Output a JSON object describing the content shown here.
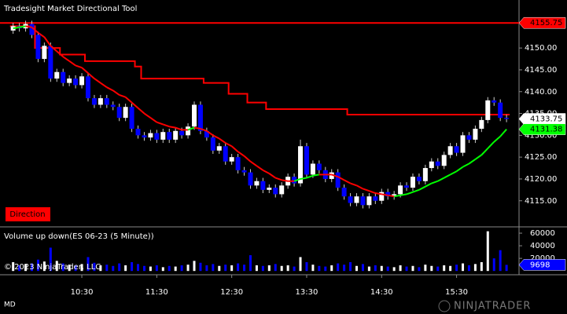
{
  "chart_data": [
    {
      "type": "candlestick",
      "title": "Tradesight Market Directional Tool",
      "direction_label": "Direction",
      "copyright": "© 2023 NinjaTrader, LLC",
      "instrument_note": "MD",
      "brand": "NINJATRADER",
      "x": [
        575,
        580,
        585,
        590,
        595,
        600,
        605,
        610,
        615,
        620,
        625,
        630,
        635,
        640,
        645,
        650,
        655,
        660,
        665,
        670,
        675,
        680,
        685,
        690,
        695,
        700,
        705,
        710,
        715,
        720,
        725,
        730,
        735,
        740,
        745,
        750,
        755,
        760,
        765,
        770,
        775,
        780,
        785,
        790,
        795,
        800,
        805,
        810,
        815,
        820,
        825,
        830,
        835,
        840,
        845,
        850,
        855,
        860,
        865,
        870,
        875,
        880,
        885,
        890,
        895,
        900,
        905,
        910,
        915,
        920,
        925,
        930,
        935,
        940,
        945,
        950,
        955,
        960,
        965,
        970
      ],
      "xlim": [
        564.5,
        980
      ],
      "xticks": [
        {
          "value": 630,
          "label": "10:30"
        },
        {
          "value": 690,
          "label": "11:30"
        },
        {
          "value": 750,
          "label": "12:30"
        },
        {
          "value": 810,
          "label": "13:30"
        },
        {
          "value": 870,
          "label": "14:30"
        },
        {
          "value": 930,
          "label": "15:30"
        }
      ],
      "open": [
        4154,
        4155,
        4154.5,
        4155.5,
        4153,
        4147.5,
        4150.5,
        4143,
        4144.5,
        4142,
        4143,
        4141.5,
        4143.5,
        4138.5,
        4137,
        4138.5,
        4137,
        4136.5,
        4134,
        4136.5,
        4131.5,
        4130,
        4129.5,
        4130.5,
        4129,
        4130.75,
        4129,
        4131,
        4130,
        4132,
        4137,
        4131,
        4129.5,
        4126.5,
        4127.5,
        4124,
        4125,
        4122,
        4121.5,
        4118.5,
        4119.5,
        4117.5,
        4118,
        4116.5,
        4118.5,
        4120.5,
        4119,
        4127.5,
        4121,
        4123.5,
        4122,
        4120,
        4121.5,
        4118,
        4116,
        4114.5,
        4116,
        4114,
        4116,
        4115,
        4117,
        4116,
        4116.5,
        4118.5,
        4118,
        4120.5,
        4119.5,
        4122.5,
        4124,
        4123,
        4125.5,
        4127.5,
        4126,
        4130,
        4129,
        4131.5,
        4133.5,
        4138,
        4137.5,
        4134
      ],
      "high": [
        4155.75,
        4155.75,
        4156.25,
        4156.25,
        4153.75,
        4151.25,
        4151.25,
        4145.25,
        4145.25,
        4143.75,
        4143.75,
        4144.25,
        4144.25,
        4139.25,
        4139.25,
        4139.25,
        4137.75,
        4137.25,
        4137.25,
        4137.25,
        4132.25,
        4130.75,
        4131.25,
        4131.25,
        4131.5,
        4131.5,
        4131.75,
        4131.75,
        4132.75,
        4137.75,
        4137.75,
        4131.75,
        4130.25,
        4128.25,
        4128.25,
        4125.75,
        4125.75,
        4122.75,
        4122.25,
        4120.25,
        4120.25,
        4118.75,
        4118.75,
        4119.25,
        4121.25,
        4121.25,
        4129,
        4128.25,
        4124.25,
        4124.25,
        4122.75,
        4122.25,
        4122.25,
        4118.75,
        4116.75,
        4116.75,
        4116.75,
        4116.75,
        4116.75,
        4117.75,
        4117.75,
        4117.25,
        4119.25,
        4119.25,
        4121.25,
        4121.25,
        4123.25,
        4124.75,
        4124.75,
        4126.25,
        4128.25,
        4128.25,
        4130.75,
        4130.75,
        4132.25,
        4134.25,
        4138.75,
        4138.75,
        4138.25,
        4134.75
      ],
      "low": [
        4153.25,
        4153.75,
        4153.75,
        4152.25,
        4146.75,
        4146.75,
        4142.25,
        4142.25,
        4141.25,
        4141.25,
        4140.75,
        4140.75,
        4137.75,
        4136.25,
        4136.25,
        4136.25,
        4135.75,
        4133.25,
        4133.25,
        4130.75,
        4129.25,
        4128.75,
        4128.75,
        4128.25,
        4128.25,
        4128.25,
        4128.25,
        4129.25,
        4129.25,
        4131.25,
        4130.25,
        4128.75,
        4125.75,
        4125.75,
        4123.25,
        4123.25,
        4121.25,
        4120.75,
        4117.75,
        4117.75,
        4116.75,
        4116.75,
        4115.75,
        4115.75,
        4117.75,
        4118.25,
        4118.25,
        4120.25,
        4120.25,
        4121.25,
        4119.25,
        4119.25,
        4117.25,
        4115.25,
        4113.75,
        4113.75,
        4113.25,
        4113.25,
        4114.25,
        4114.25,
        4115.25,
        4115.25,
        4115.75,
        4117.25,
        4117.25,
        4118.75,
        4118.75,
        4121.75,
        4122.25,
        4122.25,
        4124.75,
        4125.25,
        4125.25,
        4128.25,
        4128.25,
        4130.75,
        4132.75,
        4136.75,
        4133.25,
        4133
      ],
      "close": [
        4155,
        4154.5,
        4155.5,
        4153,
        4147.5,
        4150.5,
        4143,
        4144.5,
        4142,
        4143,
        4141.5,
        4143.5,
        4138.5,
        4137,
        4138.5,
        4137,
        4136.5,
        4134,
        4136.5,
        4131.5,
        4130,
        4129.5,
        4130.5,
        4129,
        4130.75,
        4129,
        4131,
        4130,
        4132,
        4137,
        4131,
        4129.5,
        4126.5,
        4127.5,
        4124,
        4125,
        4122,
        4121.5,
        4118.5,
        4119.5,
        4117.5,
        4118,
        4116.5,
        4118.5,
        4120.5,
        4119,
        4127.5,
        4121,
        4123.5,
        4122,
        4120,
        4121.5,
        4118,
        4116,
        4114.5,
        4116,
        4114,
        4116,
        4115,
        4117,
        4116,
        4116.5,
        4118.5,
        4118,
        4120.5,
        4119.5,
        4122.5,
        4124,
        4123,
        4125.5,
        4127.5,
        4126,
        4130,
        4129,
        4131.5,
        4133.5,
        4138,
        4137.5,
        4134,
        4133.75
      ],
      "up_color": "#ffffff",
      "down_color": "#0000ff",
      "level": 4155.75,
      "level_color": "#ff0000",
      "stop_line": {
        "color": "#ff0000",
        "values": [
          4155,
          4155,
          4155,
          4155,
          4150,
          4150,
          4150,
          4150,
          4148.5,
          4148.5,
          4148.5,
          4148.5,
          4147,
          4147,
          4147,
          4147,
          4147,
          4147,
          4147,
          4147,
          4145.75,
          4143,
          4143,
          4143,
          4143,
          4143,
          4143,
          4143,
          4143,
          4143,
          4143,
          4142,
          4142,
          4142,
          4142,
          4139.5,
          4139.5,
          4139.5,
          4137.5,
          4137.5,
          4137.5,
          4136,
          4136,
          4136,
          4136,
          4136,
          4136,
          4136,
          4136,
          4136,
          4136,
          4136,
          4136,
          4136,
          4134.75,
          4134.75,
          4134.75,
          4134.75,
          4134.75,
          4134.75,
          4134.75,
          4134.75,
          4134.75,
          4134.75,
          4134.75,
          4134.75,
          4134.75,
          4134.75,
          4134.75,
          4134.75,
          4134.75,
          4134.75,
          4134.75,
          4134.75,
          4134.75,
          4134.75,
          4134.75,
          4134.75,
          4134.75,
          4134.75
        ]
      },
      "average": {
        "color": "#ff0000",
        "rising_color": "#00ff00",
        "values": [
          4154.5,
          4154.75,
          4155,
          4154.75,
          4153.5,
          4152.5,
          4150.5,
          4149.25,
          4148,
          4147,
          4146,
          4145.5,
          4144.25,
          4143,
          4142,
          4141,
          4140.25,
          4139.25,
          4138.75,
          4137.5,
          4136.25,
          4135,
          4134,
          4133,
          4132.5,
          4132,
          4131.75,
          4131.25,
          4131.25,
          4131.75,
          4131.5,
          4131,
          4130,
          4129.25,
          4128.25,
          4127.5,
          4126.25,
          4125.25,
          4124,
          4123,
          4122,
          4121.25,
          4120.25,
          4119.75,
          4119.5,
          4119.5,
          4120,
          4120.25,
          4120.75,
          4121,
          4121,
          4121,
          4120.5,
          4119.75,
          4119,
          4118.5,
          4117.75,
          4117.25,
          4116.75,
          4116.5,
          4116.25,
          4116,
          4116.25,
          4116.5,
          4117,
          4117.5,
          4118.25,
          4119,
          4119.5,
          4120.25,
          4121,
          4121.75,
          4122.75,
          4123.5,
          4124.5,
          4125.5,
          4127,
          4128.5,
          4129.75,
          4131.38
        ]
      },
      "ylim": [
        4109.2,
        4161
      ],
      "yticks": [
        {
          "value": 4115,
          "label": "4115.00"
        },
        {
          "value": 4120,
          "label": "4120.00"
        },
        {
          "value": 4125,
          "label": "4125.00"
        },
        {
          "value": 4130,
          "label": "4130.00"
        },
        {
          "value": 4135,
          "label": "4135.00"
        },
        {
          "value": 4140,
          "label": "4140.00"
        },
        {
          "value": 4145,
          "label": "4145.00"
        },
        {
          "value": 4150,
          "label": "4150.00"
        }
      ]
    },
    {
      "type": "bar",
      "title": "Volume up down(ES 06-23 (5 Minute))",
      "values": [
        14000,
        9000,
        11000,
        12000,
        18000,
        15000,
        37000,
        16000,
        12000,
        10000,
        9000,
        11000,
        22000,
        13000,
        9000,
        10000,
        8000,
        12000,
        9000,
        14000,
        11000,
        8000,
        7000,
        9000,
        6000,
        8000,
        7000,
        9000,
        10000,
        16000,
        13000,
        9000,
        11000,
        8000,
        10000,
        9000,
        12000,
        10000,
        25000,
        9000,
        8000,
        9000,
        11000,
        8000,
        9000,
        7000,
        22000,
        14000,
        10000,
        8000,
        7000,
        9000,
        12000,
        10000,
        14000,
        8000,
        11000,
        7000,
        9000,
        8000,
        7000,
        6000,
        9000,
        7000,
        8000,
        6000,
        10000,
        8000,
        7000,
        9000,
        8000,
        10000,
        12000,
        9000,
        11000,
        14000,
        63000,
        20000,
        33000,
        9698
      ],
      "ylim": [
        -6000,
        68750
      ],
      "yticks": [
        20000,
        40000,
        60000
      ]
    }
  ]
}
